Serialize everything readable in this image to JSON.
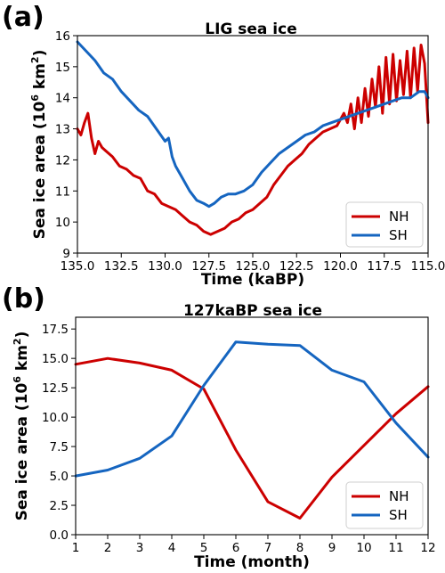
{
  "panels": [
    {
      "label": "(a)"
    },
    {
      "label": "(b)"
    }
  ],
  "colors": {
    "NH": "#cc0000",
    "SH": "#1565c0"
  },
  "chart_data": [
    {
      "type": "line",
      "title": "LIG sea ice",
      "xlabel": "Time (kaBP)",
      "ylabel": "Sea ice area (10^6 km^2)",
      "ylabel_parts": [
        "Sea ice area (10",
        "6",
        " km",
        "2",
        ")"
      ],
      "xlim": [
        135.0,
        115.0
      ],
      "ylim": [
        9,
        16
      ],
      "xticks": [
        135.0,
        132.5,
        130.0,
        127.5,
        125.0,
        122.5,
        120.0,
        117.5,
        115.0
      ],
      "xtick_labels": [
        "135.0",
        "132.5",
        "130.0",
        "127.5",
        "125.0",
        "122.5",
        "120.0",
        "117.5",
        "115.0"
      ],
      "yticks": [
        9,
        10,
        11,
        12,
        13,
        14,
        15,
        16
      ],
      "ytick_labels": [
        "9",
        "10",
        "11",
        "12",
        "13",
        "14",
        "15",
        "16"
      ],
      "legend_position": "lower-right",
      "series": [
        {
          "name": "NH",
          "x": [
            135.0,
            134.8,
            134.6,
            134.4,
            134.2,
            134.0,
            133.8,
            133.6,
            133.4,
            133.0,
            132.6,
            132.2,
            131.8,
            131.4,
            131.0,
            130.6,
            130.2,
            129.8,
            129.4,
            129.0,
            128.6,
            128.2,
            127.8,
            127.4,
            127.0,
            126.6,
            126.2,
            125.8,
            125.4,
            125.0,
            124.6,
            124.2,
            123.8,
            123.4,
            123.0,
            122.6,
            122.2,
            121.8,
            121.4,
            121.0,
            120.6,
            120.2,
            119.8,
            119.6,
            119.4,
            119.2,
            119.0,
            118.8,
            118.6,
            118.4,
            118.2,
            118.0,
            117.8,
            117.6,
            117.4,
            117.2,
            117.0,
            116.8,
            116.6,
            116.4,
            116.2,
            116.0,
            115.8,
            115.6,
            115.4,
            115.2,
            115.0
          ],
          "values": [
            13.0,
            12.8,
            13.2,
            13.5,
            12.7,
            12.2,
            12.6,
            12.4,
            12.3,
            12.1,
            11.8,
            11.7,
            11.5,
            11.4,
            11.0,
            10.9,
            10.6,
            10.5,
            10.4,
            10.2,
            10.0,
            9.9,
            9.7,
            9.6,
            9.7,
            9.8,
            10.0,
            10.1,
            10.3,
            10.4,
            10.6,
            10.8,
            11.2,
            11.5,
            11.8,
            12.0,
            12.2,
            12.5,
            12.7,
            12.9,
            13.0,
            13.1,
            13.5,
            13.2,
            13.8,
            13.0,
            14.0,
            13.2,
            14.3,
            13.4,
            14.6,
            13.7,
            15.0,
            13.5,
            15.3,
            13.8,
            15.4,
            13.9,
            15.2,
            14.1,
            15.5,
            14.0,
            15.6,
            14.2,
            15.7,
            15.1,
            13.2
          ]
        },
        {
          "name": "SH",
          "x": [
            135.0,
            134.5,
            134.0,
            133.5,
            133.0,
            132.5,
            132.0,
            131.5,
            131.0,
            130.5,
            130.0,
            129.8,
            129.6,
            129.4,
            129.0,
            128.6,
            128.2,
            127.8,
            127.5,
            127.2,
            126.8,
            126.4,
            126.0,
            125.5,
            125.0,
            124.5,
            124.0,
            123.5,
            123.0,
            122.5,
            122.0,
            121.5,
            121.0,
            120.5,
            120.0,
            119.5,
            119.0,
            118.5,
            118.0,
            117.5,
            117.0,
            116.5,
            116.0,
            115.5,
            115.2,
            115.0
          ],
          "values": [
            15.8,
            15.5,
            15.2,
            14.8,
            14.6,
            14.2,
            13.9,
            13.6,
            13.4,
            13.0,
            12.6,
            12.7,
            12.1,
            11.8,
            11.4,
            11.0,
            10.7,
            10.6,
            10.5,
            10.6,
            10.8,
            10.9,
            10.9,
            11.0,
            11.2,
            11.6,
            11.9,
            12.2,
            12.4,
            12.6,
            12.8,
            12.9,
            13.1,
            13.2,
            13.3,
            13.4,
            13.5,
            13.6,
            13.7,
            13.8,
            13.9,
            14.0,
            14.0,
            14.2,
            14.2,
            14.0
          ]
        }
      ]
    },
    {
      "type": "line",
      "title": "127kaBP sea ice",
      "xlabel": "Time (month)",
      "ylabel": "Sea ice area (10^6 km^2)",
      "ylabel_parts": [
        "Sea ice area (10",
        "6",
        " km",
        "2",
        ")"
      ],
      "xlim": [
        1,
        12
      ],
      "ylim": [
        0,
        18.5
      ],
      "xticks": [
        1,
        2,
        3,
        4,
        5,
        6,
        7,
        8,
        9,
        10,
        11,
        12
      ],
      "xtick_labels": [
        "1",
        "2",
        "3",
        "4",
        "5",
        "6",
        "7",
        "8",
        "9",
        "10",
        "11",
        "12"
      ],
      "yticks": [
        0.0,
        2.5,
        5.0,
        7.5,
        10.0,
        12.5,
        15.0,
        17.5
      ],
      "ytick_labels": [
        "0.0",
        "2.5",
        "5.0",
        "7.5",
        "10.0",
        "12.5",
        "15.0",
        "17.5"
      ],
      "legend_position": "lower-right",
      "series": [
        {
          "name": "NH",
          "x": [
            1,
            2,
            3,
            4,
            5,
            6,
            7,
            8,
            9,
            10,
            11,
            12
          ],
          "values": [
            14.5,
            15.0,
            14.6,
            14.0,
            12.4,
            7.2,
            2.8,
            1.4,
            4.9,
            7.6,
            10.3,
            12.6
          ]
        },
        {
          "name": "SH",
          "x": [
            1,
            2,
            3,
            4,
            5,
            6,
            7,
            8,
            9,
            10,
            11,
            12
          ],
          "values": [
            5.0,
            5.5,
            6.5,
            8.4,
            12.7,
            16.4,
            16.2,
            16.1,
            14.0,
            13.0,
            9.5,
            6.6
          ]
        }
      ]
    }
  ]
}
